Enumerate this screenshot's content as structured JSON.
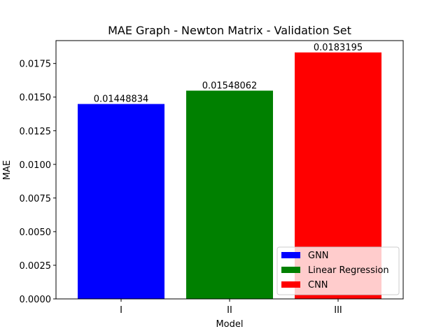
{
  "chart_data": {
    "type": "bar",
    "title": "MAE Graph - Newton Matrix - Validation Set",
    "xlabel": "Model",
    "ylabel": "MAE",
    "categories": [
      "I",
      "II",
      "III"
    ],
    "values": [
      0.01448834,
      0.01548062,
      0.0183195
    ],
    "data_labels": [
      "0.01448834",
      "0.01548062",
      "0.0183195"
    ],
    "colors": [
      "#0000ff",
      "#008000",
      "#ff0000"
    ],
    "ylim": [
      0,
      0.0192
    ],
    "yticks": [
      0,
      0.0025,
      0.005,
      0.0075,
      0.01,
      0.0125,
      0.015,
      0.0175
    ],
    "ytick_labels": [
      "0.0000",
      "0.0025",
      "0.0050",
      "0.0075",
      "0.0100",
      "0.0125",
      "0.0150",
      "0.0175"
    ],
    "grid": false,
    "legend": {
      "placement": "lower-right",
      "entries": [
        {
          "label": "GNN",
          "color": "#0000ff"
        },
        {
          "label": "Linear Regression",
          "color": "#008000"
        },
        {
          "label": "CNN",
          "color": "#ff0000"
        }
      ]
    }
  }
}
